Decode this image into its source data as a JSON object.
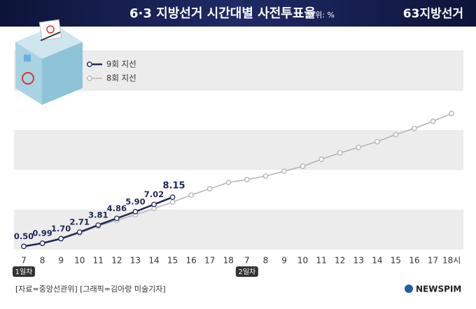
{
  "chart_data": {
    "type": "line",
    "title": "6·3 지방선거 시간대별 사전투표율",
    "unit": "단위: %",
    "logo": "63지방선거",
    "categories": [
      "7",
      "8",
      "9",
      "10",
      "11",
      "12",
      "13",
      "14",
      "15",
      "16",
      "17",
      "18",
      "7",
      "8",
      "9",
      "10",
      "11",
      "12",
      "13",
      "14",
      "15",
      "16",
      "17",
      "18시"
    ],
    "day_labels": [
      "1일차",
      "2일차"
    ],
    "series": [
      {
        "name": "9회 지선",
        "color": "#1e2757",
        "values": [
          0.5,
          0.99,
          1.7,
          2.71,
          3.81,
          4.86,
          5.9,
          7.02,
          8.15,
          null,
          null,
          null,
          null,
          null,
          null,
          null,
          null,
          null,
          null,
          null,
          null,
          null,
          null,
          null
        ],
        "value_labels": [
          "0.50",
          "0.99",
          "1.70",
          "2.71",
          "3.81",
          "4.86",
          "5.90",
          "7.02",
          "8.15",
          null,
          null,
          null,
          null,
          null,
          null,
          null,
          null,
          null,
          null,
          null,
          null,
          null,
          null,
          null
        ]
      },
      {
        "name": "8회 지선",
        "color": "#b3b3b3",
        "values": [
          0.5,
          0.94,
          1.7,
          2.58,
          3.67,
          4.55,
          5.42,
          6.4,
          7.39,
          8.48,
          9.46,
          10.45,
          10.89,
          11.43,
          12.2,
          12.96,
          14.05,
          15.04,
          15.9,
          16.8,
          17.9,
          18.86,
          19.96,
          21.16
        ]
      }
    ],
    "ylim": [
      0,
      31
    ],
    "source": "[자료=중앙선관위] [그래픽=김아랑 미술기자]",
    "brand": "NEWSPIM"
  }
}
